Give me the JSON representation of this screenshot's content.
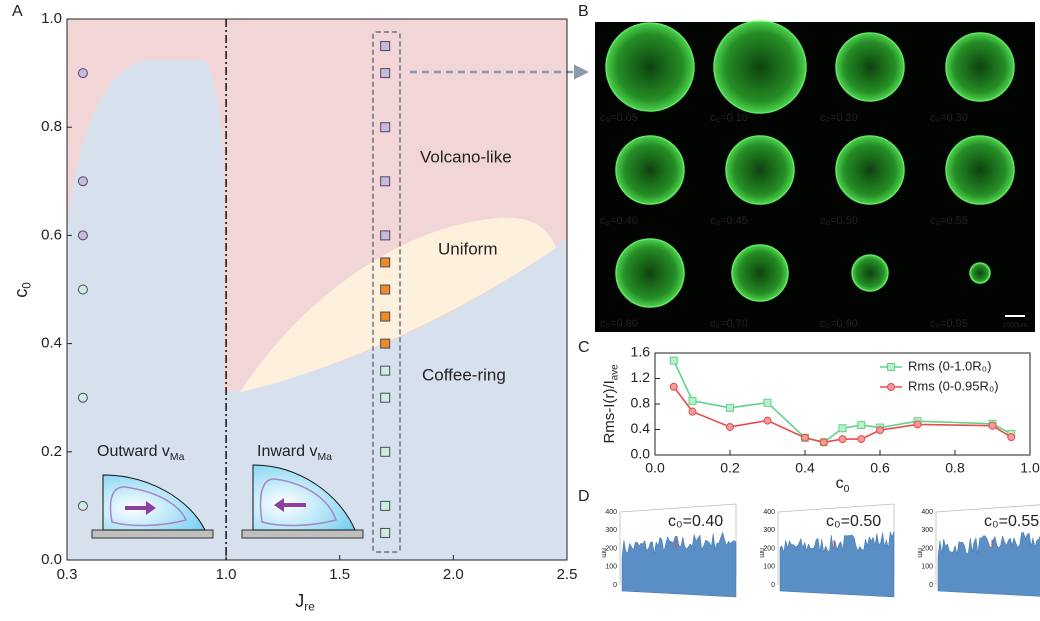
{
  "panel_labels": [
    "A",
    "B",
    "C",
    "D"
  ],
  "chart_data": [
    {
      "type": "scatter",
      "xlabel": {
        "text": "J",
        "sub": "re"
      },
      "ylabel": {
        "text": "c",
        "sub": "0"
      },
      "xlim": [
        0.3,
        2.5
      ],
      "xticks": [
        0.3,
        {
          "value": 1,
          "label": "1.0"
        },
        1.5,
        {
          "value": 2,
          "label": "2.0"
        },
        2.5
      ],
      "ylim": [
        0,
        1
      ],
      "yticks": [
        {
          "value": 0,
          "label": "0.0"
        },
        0.2,
        0.4,
        0.6,
        0.8,
        {
          "value": 1,
          "label": "1.0"
        }
      ],
      "vline": 1.0,
      "annotations": [
        "Volcano-like",
        "Uniform",
        "Coffee-ring"
      ],
      "regime_labels": [
        {
          "text": "Outward v",
          "sub": "Ma"
        },
        {
          "text": "Inward v",
          "sub": "Ma"
        }
      ],
      "series": [
        {
          "marker": "circle",
          "color": "#c7b9e0",
          "x": [
            0.37,
            0.37,
            0.37
          ],
          "values": [
            0.9,
            0.7,
            0.6
          ]
        },
        {
          "marker": "circle",
          "color": "#cdeedd",
          "x": [
            0.37,
            0.37,
            0.37
          ],
          "values": [
            0.5,
            0.3,
            0.1
          ]
        },
        {
          "marker": "square",
          "color": "#c7b9e0",
          "x": [
            1.7,
            1.7,
            1.7,
            1.7,
            1.7
          ],
          "values": [
            0.95,
            0.9,
            0.8,
            0.7,
            0.6
          ]
        },
        {
          "marker": "square",
          "color": "#f08a24",
          "x": [
            1.7,
            1.7,
            1.7,
            1.7
          ],
          "values": [
            0.55,
            0.5,
            0.45,
            0.4
          ]
        },
        {
          "marker": "square",
          "color": "#cdeedd",
          "x": [
            1.7,
            1.7,
            1.7,
            1.7,
            1.7
          ],
          "values": [
            0.35,
            0.3,
            0.2,
            0.1,
            0.05
          ]
        }
      ]
    },
    {
      "type": "line",
      "xlabel": {
        "text": "c",
        "sub": "0"
      },
      "ylabel": {
        "text": "Rms-I(r)/I",
        "sub": "ave"
      },
      "xlim": [
        0,
        1
      ],
      "xticks": [
        {
          "value": 0,
          "label": "0.0"
        },
        0.2,
        0.4,
        0.6,
        0.8,
        {
          "value": 1,
          "label": "1.0"
        }
      ],
      "ylim": [
        0,
        1.6
      ],
      "yticks": [
        {
          "value": 0,
          "label": "0.0"
        },
        0.4,
        0.8,
        1.2,
        1.6
      ],
      "legend": "upper right",
      "series": [
        {
          "name": "Rms (0-1.0R₀)",
          "color": "#5fd38a",
          "marker": "square",
          "x": [
            0.05,
            0.1,
            0.2,
            0.3,
            0.4,
            0.45,
            0.5,
            0.55,
            0.6,
            0.7,
            0.9,
            0.95
          ],
          "values": [
            1.48,
            0.85,
            0.74,
            0.82,
            0.27,
            0.2,
            0.42,
            0.47,
            0.43,
            0.53,
            0.49,
            0.33
          ]
        },
        {
          "name": "Rms (0-0.95R₀)",
          "color": "#e84a4a",
          "marker": "circle",
          "x": [
            0.05,
            0.1,
            0.2,
            0.3,
            0.4,
            0.45,
            0.5,
            0.55,
            0.6,
            0.7,
            0.9,
            0.95
          ],
          "values": [
            1.07,
            0.68,
            0.44,
            0.54,
            0.27,
            0.2,
            0.25,
            0.25,
            0.39,
            0.48,
            0.46,
            0.28
          ]
        }
      ]
    }
  ],
  "micrographs": {
    "captions": [
      "c₀=0.05",
      "c₀=0.10",
      "c₀=0.20",
      "c₀=0.30",
      "c₀=0.40",
      "c₀=0.45",
      "c₀=0.50",
      "c₀=0.55",
      "c₀=0.60",
      "c₀=0.70",
      "c₀=0.90",
      "c₀=0.95"
    ],
    "scale_bar": "1000μm"
  },
  "surface_plots": {
    "captions": [
      "c₀=0.40",
      "c₀=0.50",
      "c₀=0.55"
    ],
    "zticks": [
      0,
      100,
      200,
      300,
      400
    ],
    "z_unit": "nm"
  }
}
